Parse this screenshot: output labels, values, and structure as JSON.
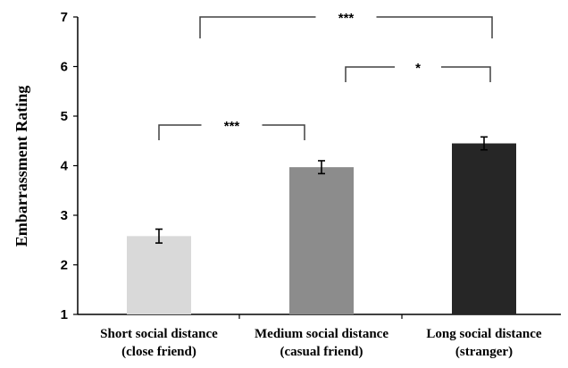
{
  "chart_data": {
    "type": "bar",
    "title": "",
    "xlabel": "",
    "ylabel": "Embarrassment Rating",
    "ylim": [
      1,
      7
    ],
    "yticks": [
      "1",
      "2",
      "3",
      "4",
      "5",
      "6",
      "7"
    ],
    "grid": false,
    "categories": [
      [
        "Short social distance",
        "(close friend)"
      ],
      [
        "Medium social distance",
        "(casual friend)"
      ],
      [
        "Long social distance",
        "(stranger)"
      ]
    ],
    "values": [
      2.58,
      3.97,
      4.45
    ],
    "errors": [
      0.14,
      0.13,
      0.13
    ],
    "colors": [
      "#d9d9d9",
      "#8c8c8c",
      "#262626"
    ],
    "significance": [
      {
        "from": 0,
        "to": 1,
        "label": "***"
      },
      {
        "from": 1,
        "to": 2,
        "label": "*"
      },
      {
        "from": 0,
        "to": 2,
        "label": "***"
      }
    ]
  }
}
